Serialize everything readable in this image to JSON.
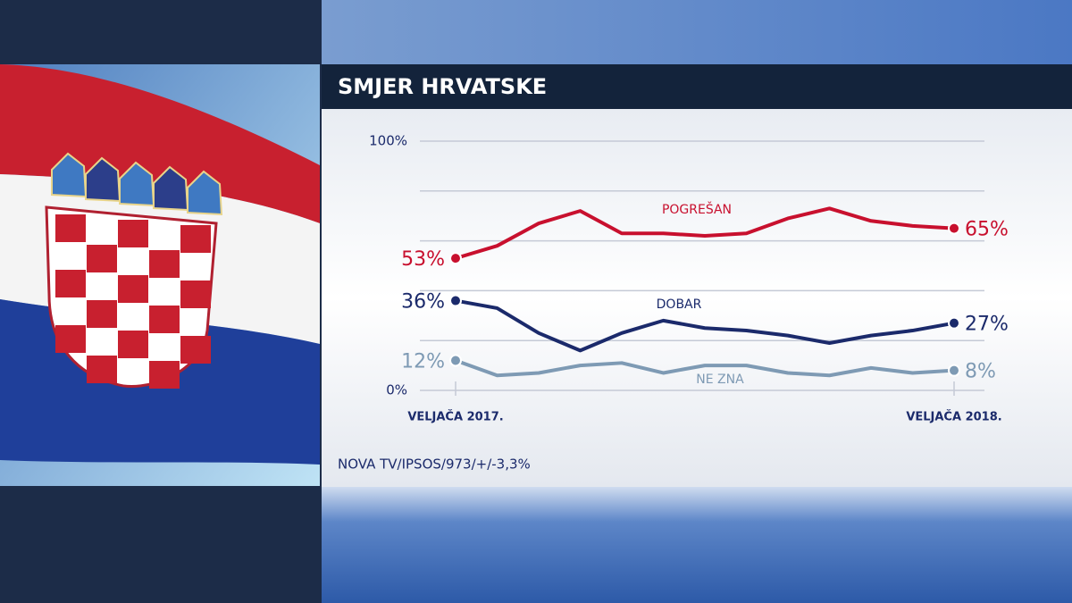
{
  "chart_data": {
    "type": "line",
    "title": "SMJER HRVATSKE",
    "source": "NOVA TV/IPSOS/973/+/-3,3%",
    "categories": [
      "VELJAČA 2017.",
      null,
      null,
      null,
      null,
      null,
      null,
      null,
      null,
      null,
      null,
      null,
      "VELJAČA 2018."
    ],
    "ylim": [
      0,
      100
    ],
    "yticks": [
      {
        "value": 0,
        "label": "0%"
      },
      {
        "value": 20,
        "label": null
      },
      {
        "value": 40,
        "label": null
      },
      {
        "value": 60,
        "label": null
      },
      {
        "value": 80,
        "label": null
      },
      {
        "value": 100,
        "label": "100%"
      }
    ],
    "grid": true,
    "series": [
      {
        "name": "POGREŠAN",
        "color": "#c8102e",
        "values": [
          53,
          58,
          67,
          72,
          63,
          63,
          62,
          63,
          69,
          73,
          68,
          66,
          65
        ],
        "value_labels": [
          "53%",
          null,
          null,
          null,
          null,
          null,
          null,
          null,
          null,
          null,
          null,
          null,
          "65%"
        ]
      },
      {
        "name": "DOBAR",
        "color": "#1b2a6b",
        "values": [
          36,
          33,
          23,
          16,
          23,
          28,
          25,
          24,
          22,
          19,
          22,
          24,
          27
        ],
        "value_labels": [
          "36%",
          null,
          null,
          null,
          null,
          null,
          null,
          null,
          null,
          null,
          null,
          null,
          "27%"
        ]
      },
      {
        "name": "NE ZNA",
        "color": "#7e9ab4",
        "values": [
          12,
          6,
          7,
          10,
          11,
          7,
          10,
          10,
          7,
          6,
          9,
          7,
          8
        ],
        "value_labels": [
          "12%",
          null,
          null,
          null,
          null,
          null,
          null,
          null,
          null,
          null,
          null,
          null,
          "8%"
        ]
      }
    ]
  }
}
